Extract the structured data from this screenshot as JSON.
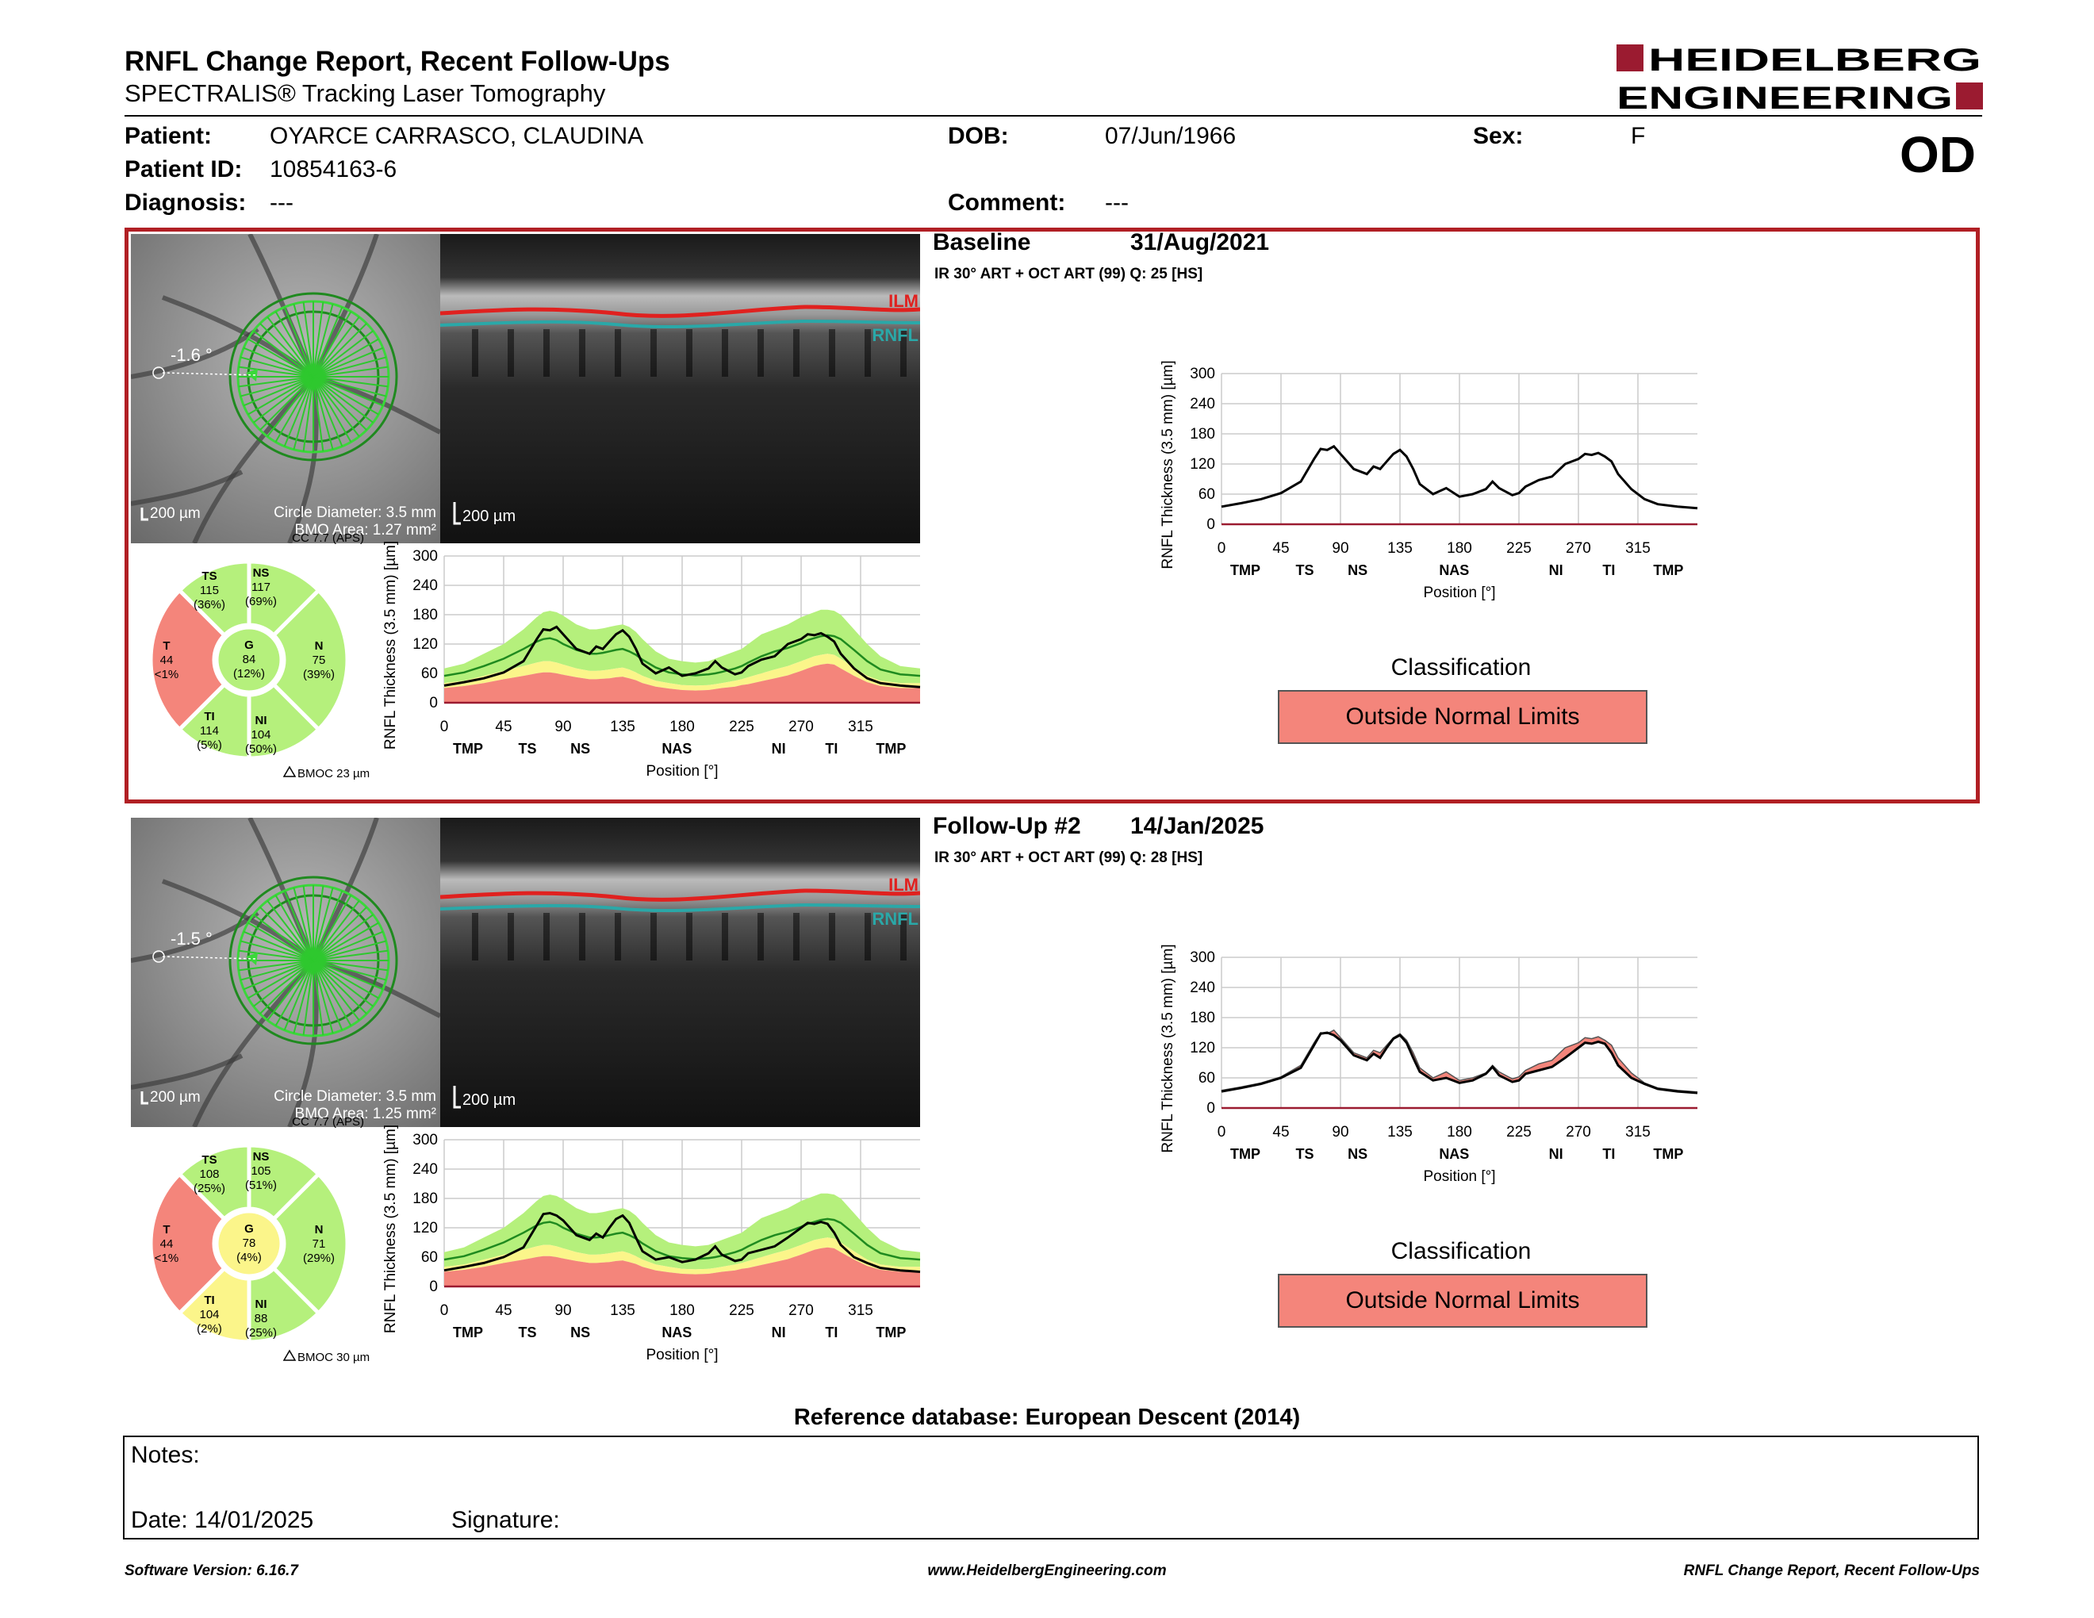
{
  "header": {
    "title": "RNFL Change Report, Recent Follow-Ups",
    "subtitle": "SPECTRALIS® Tracking Laser Tomography",
    "logo_line1": "HEIDELBERG",
    "logo_line2": "ENGINEERING",
    "eye": "OD"
  },
  "patient": {
    "patient_label": "Patient:",
    "patient_name": "OYARCE CARRASCO, CLAUDINA",
    "id_label": "Patient ID:",
    "id": "10854163-6",
    "diagnosis_label": "Diagnosis:",
    "diagnosis": "---",
    "dob_label": "DOB:",
    "dob": "07/Jun/1966",
    "comment_label": "Comment:",
    "comment": "---",
    "sex_label": "Sex:",
    "sex": "F"
  },
  "colors": {
    "accent_red": "#b11f24",
    "outside_normal": "#f4857b",
    "borderline": "#fbf58a",
    "within_normal": "#b5f07c",
    "scan_green": "#1f8a1f"
  },
  "scans": [
    {
      "title": "Baseline",
      "date": "31/Aug/2021",
      "meta": "IR 30° ART + OCT ART (99) Q: 25 [HS]",
      "angle": "-1.6 °",
      "scale_fundus": "200 µm",
      "scale_oct": "200 µm",
      "circle_diameter": "Circle Diameter: 3.5 mm",
      "bmo_area": "BMO Area: 1.27 mm²",
      "cc": "CC 7.7 (APS)",
      "ilm": "ILM",
      "rnfl": "RNFL",
      "bmoc": "BMOC 23 µm",
      "classification_title": "Classification",
      "classification": "Outside Normal Limits",
      "sectors": {
        "TS": {
          "label": "TS",
          "value": "115",
          "pct": "(36%)",
          "status": "within"
        },
        "NS": {
          "label": "NS",
          "value": "117",
          "pct": "(69%)",
          "status": "within"
        },
        "T": {
          "label": "T",
          "value": "44",
          "pct": "<1%",
          "status": "outside"
        },
        "G": {
          "label": "G",
          "value": "84",
          "pct": "(12%)",
          "status": "within"
        },
        "N": {
          "label": "N",
          "value": "75",
          "pct": "(39%)",
          "status": "within"
        },
        "TI": {
          "label": "TI",
          "value": "114",
          "pct": "(5%)",
          "status": "within"
        },
        "NI": {
          "label": "NI",
          "value": "104",
          "pct": "(50%)",
          "status": "within"
        }
      }
    },
    {
      "title": "Follow-Up #2",
      "date": "14/Jan/2025",
      "meta": "IR 30° ART + OCT ART (99) Q: 28 [HS]",
      "angle": "-1.5 °",
      "scale_fundus": "200 µm",
      "scale_oct": "200 µm",
      "circle_diameter": "Circle Diameter: 3.5 mm",
      "bmo_area": "BMO Area: 1.25 mm²",
      "cc": "CC 7.7 (APS)",
      "ilm": "ILM",
      "rnfl": "RNFL",
      "bmoc": "BMOC 30 µm",
      "classification_title": "Classification",
      "classification": "Outside Normal Limits",
      "sectors": {
        "TS": {
          "label": "TS",
          "value": "108",
          "pct": "(25%)",
          "status": "within"
        },
        "NS": {
          "label": "NS",
          "value": "105",
          "pct": "(51%)",
          "status": "within"
        },
        "T": {
          "label": "T",
          "value": "44",
          "pct": "<1%",
          "status": "outside"
        },
        "G": {
          "label": "G",
          "value": "78",
          "pct": "(4%)",
          "status": "borderline"
        },
        "N": {
          "label": "N",
          "value": "71",
          "pct": "(29%)",
          "status": "within"
        },
        "TI": {
          "label": "TI",
          "value": "104",
          "pct": "(2%)",
          "status": "borderline"
        },
        "NI": {
          "label": "NI",
          "value": "88",
          "pct": "(25%)",
          "status": "within"
        }
      }
    }
  ],
  "chart_data": {
    "type": "line",
    "ylabel": "RNFL Thickness (3.5 mm) [µm]",
    "xlabel": "Position [°]",
    "xlim": [
      0,
      360
    ],
    "ylim": [
      0,
      300
    ],
    "xticks": [
      "0",
      "45",
      "90",
      "135",
      "180",
      "225",
      "270",
      "315"
    ],
    "yticks": [
      "0",
      "60",
      "120",
      "180",
      "240",
      "300"
    ],
    "sector_labels": [
      "TMP",
      "TS",
      "NS",
      "NAS",
      "NI",
      "TI",
      "TMP"
    ],
    "x": [
      0,
      15,
      30,
      45,
      60,
      70,
      75,
      80,
      85,
      90,
      100,
      110,
      115,
      120,
      125,
      130,
      135,
      140,
      145,
      150,
      160,
      170,
      180,
      190,
      200,
      205,
      210,
      220,
      225,
      230,
      240,
      250,
      260,
      270,
      275,
      280,
      285,
      290,
      295,
      300,
      310,
      320,
      330,
      345,
      360
    ],
    "normal_upper": [
      70,
      80,
      100,
      120,
      150,
      175,
      185,
      188,
      185,
      178,
      160,
      150,
      150,
      152,
      155,
      158,
      160,
      155,
      145,
      130,
      105,
      90,
      85,
      82,
      85,
      90,
      95,
      105,
      110,
      120,
      140,
      150,
      160,
      175,
      180,
      185,
      190,
      190,
      188,
      180,
      150,
      120,
      95,
      75,
      70
    ],
    "normal_mid": [
      55,
      62,
      75,
      90,
      110,
      125,
      130,
      132,
      128,
      120,
      108,
      100,
      100,
      102,
      105,
      108,
      110,
      105,
      98,
      88,
      72,
      62,
      58,
      56,
      58,
      60,
      63,
      70,
      75,
      82,
      95,
      105,
      112,
      122,
      128,
      132,
      136,
      138,
      136,
      130,
      108,
      85,
      68,
      58,
      55
    ],
    "borderline_upper": [
      40,
      45,
      55,
      65,
      75,
      82,
      85,
      85,
      82,
      78,
      70,
      65,
      65,
      66,
      68,
      70,
      72,
      68,
      62,
      55,
      45,
      40,
      36,
      35,
      36,
      38,
      40,
      45,
      48,
      52,
      60,
      68,
      75,
      85,
      90,
      95,
      98,
      100,
      98,
      90,
      72,
      55,
      45,
      40,
      40
    ],
    "outside_upper": [
      30,
      34,
      40,
      48,
      55,
      60,
      62,
      62,
      60,
      57,
      52,
      48,
      48,
      49,
      50,
      52,
      53,
      50,
      46,
      40,
      33,
      29,
      26,
      25,
      26,
      28,
      30,
      33,
      36,
      38,
      44,
      50,
      56,
      65,
      70,
      75,
      78,
      80,
      78,
      70,
      55,
      42,
      34,
      30,
      30
    ],
    "series": [
      {
        "name": "Baseline",
        "values": [
          35,
          42,
          50,
          62,
          85,
          130,
          150,
          148,
          155,
          140,
          110,
          100,
          115,
          110,
          125,
          140,
          148,
          135,
          110,
          80,
          60,
          72,
          55,
          60,
          70,
          85,
          72,
          58,
          62,
          75,
          88,
          95,
          120,
          130,
          140,
          138,
          142,
          135,
          125,
          100,
          70,
          50,
          40,
          35,
          32
        ]
      },
      {
        "name": "Follow-Up #2",
        "values": [
          33,
          40,
          48,
          60,
          80,
          125,
          148,
          150,
          145,
          135,
          105,
          95,
          108,
          100,
          120,
          138,
          145,
          130,
          100,
          72,
          55,
          60,
          50,
          55,
          68,
          82,
          65,
          52,
          55,
          68,
          75,
          82,
          100,
          120,
          130,
          128,
          132,
          128,
          110,
          85,
          60,
          48,
          38,
          33,
          30
        ]
      }
    ]
  },
  "reference_db": "Reference database: European Descent (2014)",
  "notes": {
    "notes_label": "Notes:",
    "date_label": "Date: 14/01/2025",
    "signature_label": "Signature:"
  },
  "footer": {
    "left": "Software Version: 6.16.7",
    "center": "www.HeidelbergEngineering.com",
    "right": "RNFL Change Report, Recent Follow-Ups"
  }
}
